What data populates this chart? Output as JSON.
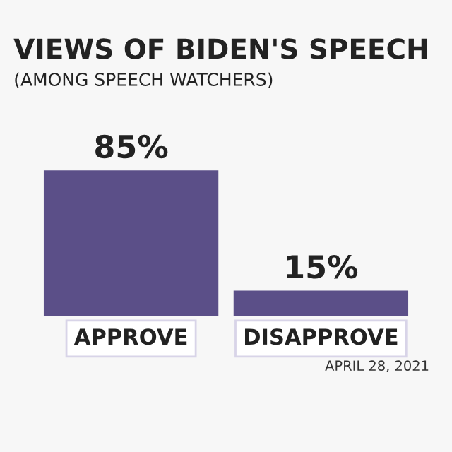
{
  "chart_data": {
    "type": "bar",
    "title": "VIEWS OF BIDEN'S SPEECH",
    "subtitle": "(AMONG SPEECH WATCHERS)",
    "categories": [
      "APPROVE",
      "DISAPPROVE"
    ],
    "values": [
      85,
      15
    ],
    "color": "#5b4f88",
    "value_labels": [
      "85%",
      "15%"
    ],
    "annotations": [
      "APRIL 28, 2021"
    ],
    "grid": false,
    "legend": false
  }
}
